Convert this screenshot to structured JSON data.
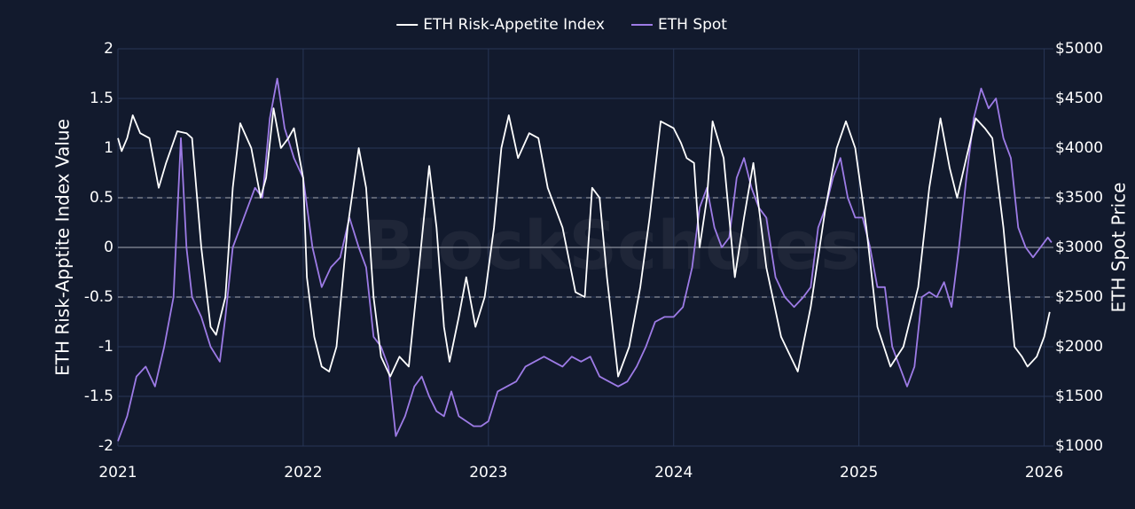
{
  "chart_data": {
    "type": "line",
    "watermark": "BlockScholes",
    "y_axis_label": "ETH Risk-Apptite Index Value",
    "y2_axis_label": "ETH Spot Price",
    "xlim": [
      2021,
      2026.05
    ],
    "xticks": [
      2021,
      2022,
      2023,
      2024,
      2025,
      2026
    ],
    "ylim": [
      -2,
      2
    ],
    "yticks": [
      -2,
      -1.5,
      -1,
      -0.5,
      0,
      0.5,
      1,
      1.5,
      2
    ],
    "y2lim": [
      1000,
      5000
    ],
    "y2ticks": [
      {
        "value": 1000,
        "label": "$1000"
      },
      {
        "value": 1500,
        "label": "$1500"
      },
      {
        "value": 2000,
        "label": "$2000"
      },
      {
        "value": 2500,
        "label": "$2500"
      },
      {
        "value": 3000,
        "label": "$3000"
      },
      {
        "value": 3500,
        "label": "$3500"
      },
      {
        "value": 4000,
        "label": "$4000"
      },
      {
        "value": 4500,
        "label": "$4500"
      },
      {
        "value": 5000,
        "label": "$5000"
      }
    ],
    "grid": true,
    "reference_lines": [
      {
        "value": 0.5,
        "style": "dashed"
      },
      {
        "value": 0,
        "style": "solid"
      },
      {
        "value": -0.5,
        "style": "dashed"
      }
    ],
    "legend": "top",
    "series": [
      {
        "name": "ETH Risk-Appetite Index",
        "color": "#ffffff",
        "x": [
          2021.0,
          2021.02,
          2021.05,
          2021.08,
          2021.12,
          2021.17,
          2021.22,
          2021.26,
          2021.32,
          2021.37,
          2021.4,
          2021.45,
          2021.5,
          2021.53,
          2021.58,
          2021.62,
          2021.66,
          2021.72,
          2021.77,
          2021.8,
          2021.84,
          2021.88,
          2021.92,
          2021.95,
          2022.0,
          2022.02,
          2022.06,
          2022.1,
          2022.14,
          2022.18,
          2022.24,
          2022.3,
          2022.34,
          2022.38,
          2022.42,
          2022.47,
          2022.52,
          2022.57,
          2022.62,
          2022.68,
          2022.72,
          2022.76,
          2022.79,
          2022.84,
          2022.88,
          2022.93,
          2022.98,
          2023.03,
          2023.07,
          2023.11,
          2023.16,
          2023.22,
          2023.27,
          2023.32,
          2023.4,
          2023.47,
          2023.52,
          2023.56,
          2023.6,
          2023.64,
          2023.7,
          2023.76,
          2023.82,
          2023.87,
          2023.93,
          2024.0,
          2024.04,
          2024.07,
          2024.11,
          2024.14,
          2024.18,
          2024.21,
          2024.27,
          2024.33,
          2024.38,
          2024.43,
          2024.5,
          2024.58,
          2024.67,
          2024.74,
          2024.82,
          2024.88,
          2024.93,
          2024.98,
          2025.04,
          2025.1,
          2025.17,
          2025.24,
          2025.32,
          2025.38,
          2025.44,
          2025.49,
          2025.53,
          2025.58,
          2025.63,
          2025.68,
          2025.72,
          2025.78,
          2025.84,
          2025.88,
          2025.91,
          2025.96,
          2026.0,
          2026.03
        ],
        "values": [
          1.1,
          0.97,
          1.1,
          1.33,
          1.15,
          1.1,
          0.6,
          0.85,
          1.17,
          1.15,
          1.1,
          0.0,
          -0.8,
          -0.88,
          -0.5,
          0.6,
          1.25,
          1.0,
          0.5,
          0.7,
          1.4,
          1.0,
          1.1,
          1.2,
          0.7,
          -0.3,
          -0.9,
          -1.2,
          -1.25,
          -1.0,
          0.2,
          1.0,
          0.6,
          -0.5,
          -1.1,
          -1.3,
          -1.1,
          -1.2,
          -0.3,
          0.82,
          0.2,
          -0.8,
          -1.15,
          -0.7,
          -0.3,
          -0.8,
          -0.5,
          0.2,
          1.0,
          1.33,
          0.9,
          1.15,
          1.1,
          0.6,
          0.2,
          -0.45,
          -0.5,
          0.6,
          0.5,
          -0.3,
          -1.3,
          -1.0,
          -0.4,
          0.3,
          1.27,
          1.2,
          1.05,
          0.9,
          0.85,
          0.0,
          0.5,
          1.27,
          0.9,
          -0.3,
          0.3,
          0.85,
          -0.2,
          -0.9,
          -1.25,
          -0.6,
          0.4,
          1.0,
          1.27,
          1.0,
          0.2,
          -0.8,
          -1.2,
          -1.0,
          -0.4,
          0.6,
          1.3,
          0.8,
          0.5,
          0.9,
          1.3,
          1.2,
          1.1,
          0.2,
          -1.0,
          -1.1,
          -1.2,
          -1.1,
          -0.9,
          -0.65
        ]
      },
      {
        "name": "ETH Spot",
        "color": "#9d7be6",
        "axis": "y2",
        "x": [
          2021.0,
          2021.05,
          2021.1,
          2021.15,
          2021.2,
          2021.25,
          2021.3,
          2021.34,
          2021.37,
          2021.4,
          2021.45,
          2021.5,
          2021.55,
          2021.58,
          2021.62,
          2021.66,
          2021.7,
          2021.74,
          2021.78,
          2021.82,
          2021.86,
          2021.9,
          2021.95,
          2022.0,
          2022.05,
          2022.1,
          2022.15,
          2022.2,
          2022.25,
          2022.3,
          2022.34,
          2022.38,
          2022.42,
          2022.46,
          2022.5,
          2022.55,
          2022.6,
          2022.64,
          2022.68,
          2022.72,
          2022.76,
          2022.8,
          2022.84,
          2022.88,
          2022.92,
          2022.96,
          2023.0,
          2023.05,
          2023.1,
          2023.15,
          2023.2,
          2023.25,
          2023.3,
          2023.35,
          2023.4,
          2023.45,
          2023.5,
          2023.55,
          2023.6,
          2023.65,
          2023.7,
          2023.75,
          2023.8,
          2023.85,
          2023.9,
          2023.95,
          2024.0,
          2024.05,
          2024.1,
          2024.14,
          2024.18,
          2024.22,
          2024.26,
          2024.3,
          2024.34,
          2024.38,
          2024.42,
          2024.46,
          2024.5,
          2024.55,
          2024.6,
          2024.65,
          2024.7,
          2024.74,
          2024.78,
          2024.82,
          2024.86,
          2024.9,
          2024.94,
          2024.98,
          2025.02,
          2025.06,
          2025.1,
          2025.14,
          2025.18,
          2025.22,
          2025.26,
          2025.3,
          2025.34,
          2025.38,
          2025.42,
          2025.46,
          2025.5,
          2025.54,
          2025.58,
          2025.62,
          2025.66,
          2025.7,
          2025.74,
          2025.78,
          2025.82,
          2025.86,
          2025.9,
          2025.94,
          2025.98,
          2026.02,
          2026.04
        ],
        "values": [
          1050,
          1300,
          1700,
          1800,
          1600,
          2000,
          2500,
          4100,
          3000,
          2500,
          2300,
          2000,
          1850,
          2300,
          3000,
          3200,
          3400,
          3600,
          3500,
          4300,
          4700,
          4200,
          3900,
          3700,
          3000,
          2600,
          2800,
          2900,
          3300,
          3000,
          2800,
          2100,
          2000,
          1800,
          1100,
          1300,
          1600,
          1700,
          1500,
          1350,
          1300,
          1550,
          1300,
          1250,
          1200,
          1200,
          1250,
          1550,
          1600,
          1650,
          1800,
          1850,
          1900,
          1850,
          1800,
          1900,
          1850,
          1900,
          1700,
          1650,
          1600,
          1650,
          1800,
          2000,
          2250,
          2300,
          2300,
          2400,
          2800,
          3400,
          3600,
          3200,
          3000,
          3100,
          3700,
          3900,
          3600,
          3400,
          3300,
          2700,
          2500,
          2400,
          2500,
          2600,
          3200,
          3400,
          3700,
          3900,
          3500,
          3300,
          3300,
          3000,
          2600,
          2600,
          2000,
          1800,
          1600,
          1800,
          2500,
          2550,
          2500,
          2650,
          2400,
          3000,
          3700,
          4300,
          4600,
          4400,
          4500,
          4100,
          3900,
          3200,
          3000,
          2900,
          3000,
          3100,
          3050
        ]
      }
    ]
  }
}
